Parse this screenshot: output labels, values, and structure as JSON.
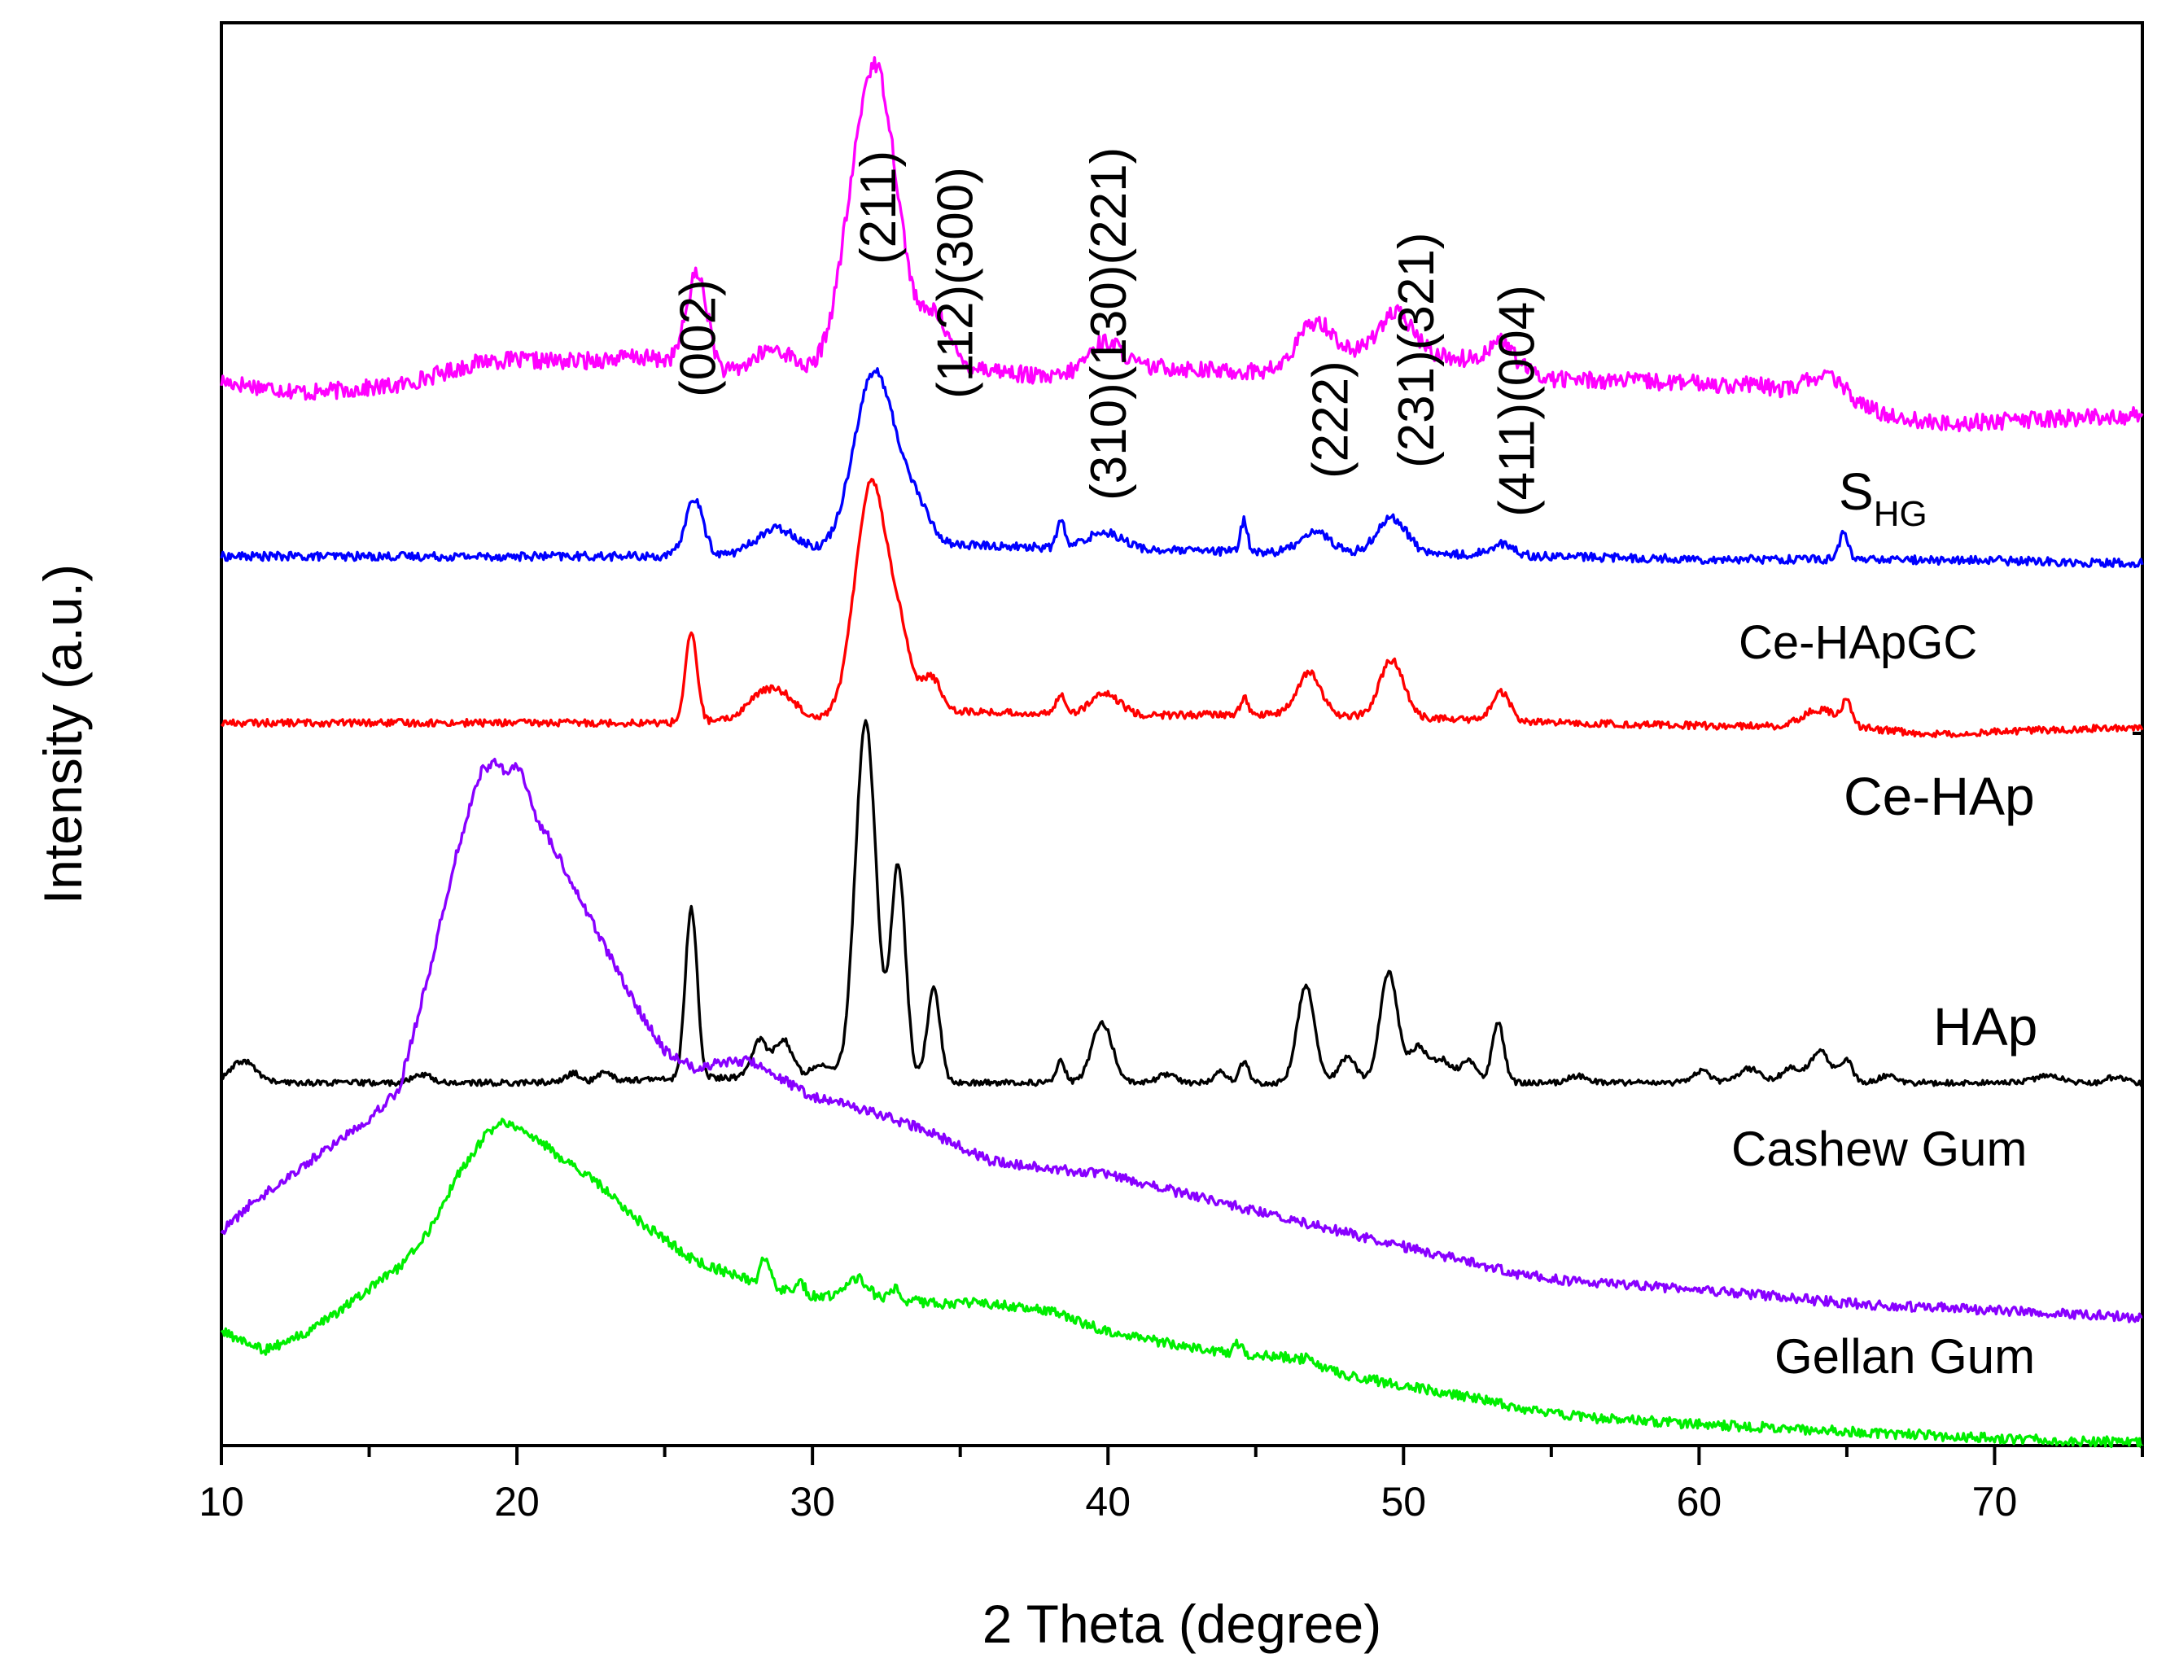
{
  "chart_data": {
    "type": "line",
    "title": "",
    "xlabel": "2 Theta (degree)",
    "ylabel": "Intensity (a.u.)",
    "xlim": [
      10,
      75
    ],
    "ylim": [
      0,
      100
    ],
    "xticks": [
      10,
      20,
      30,
      40,
      50,
      60,
      70
    ],
    "grid": false,
    "legend": "labels placed at right of each trace",
    "series": [
      {
        "name": "S",
        "subscript": "HG",
        "color": "#ff00ff",
        "offset": 74,
        "noise": 0.6,
        "baseline": [
          [
            10,
            0.8
          ],
          [
            11,
            0.5
          ],
          [
            13,
            0
          ],
          [
            16,
            0.5
          ],
          [
            19,
            2.3
          ],
          [
            22,
            2.2
          ],
          [
            24,
            2.5
          ],
          [
            25.5,
            2.2
          ],
          [
            27,
            1.3
          ],
          [
            30,
            1.2
          ],
          [
            31,
            3.5
          ],
          [
            35,
            2
          ],
          [
            38,
            1
          ],
          [
            42,
            1.8
          ],
          [
            44,
            1.5
          ],
          [
            46,
            1.5
          ],
          [
            48,
            2.5
          ],
          [
            50,
            2.8
          ],
          [
            53,
            2.2
          ],
          [
            55,
            1
          ],
          [
            58,
            0.8
          ],
          [
            62,
            0.5
          ],
          [
            65,
            -1
          ],
          [
            68,
            -2.2
          ],
          [
            70,
            -2
          ],
          [
            75,
            -1.6
          ]
        ],
        "peaks": [
          [
            26.1,
            6.5,
            0.35
          ],
          [
            28.7,
            1.8,
            0.7
          ],
          [
            32.1,
            20,
            0.75
          ],
          [
            34.2,
            3,
            0.4
          ],
          [
            39.9,
            2.2,
            0.6
          ],
          [
            47,
            3,
            0.6
          ],
          [
            49.7,
            2.8,
            0.6
          ],
          [
            53.3,
            1.6,
            0.4
          ],
          [
            64.3,
            1.8,
            0.7
          ]
        ]
      },
      {
        "name": "Ce-HApGC",
        "color": "#0000ff",
        "offset": 62.5,
        "noise": 0.3,
        "baseline": [
          [
            10,
            0
          ],
          [
            25,
            0
          ],
          [
            30,
            0.2
          ],
          [
            35,
            0.8
          ],
          [
            40,
            0.5
          ],
          [
            45,
            0.3
          ],
          [
            50,
            0.2
          ],
          [
            55,
            0
          ],
          [
            60,
            -0.2
          ],
          [
            65,
            -0.2
          ],
          [
            70,
            -0.3
          ],
          [
            75,
            -0.5
          ]
        ],
        "peaks": [
          [
            26,
            4,
            0.3
          ],
          [
            28.8,
            1.8,
            0.7
          ],
          [
            32.1,
            12.5,
            0.7
          ],
          [
            33.5,
            2.5,
            0.5
          ],
          [
            38.4,
            2,
            0.12
          ],
          [
            39.9,
            1.2,
            0.6
          ],
          [
            44.6,
            2.2,
            0.12
          ],
          [
            47,
            1.5,
            0.5
          ],
          [
            49.6,
            2.5,
            0.5
          ],
          [
            53.3,
            0.8,
            0.4
          ],
          [
            64.9,
            1.8,
            0.15
          ]
        ]
      },
      {
        "name": "Ce-HAp",
        "color": "#ff0000",
        "offset": 50.8,
        "noise": 0.25,
        "baseline": [
          [
            10,
            0
          ],
          [
            25,
            0
          ],
          [
            30,
            0.3
          ],
          [
            35,
            0.8
          ],
          [
            40,
            0.5
          ],
          [
            45,
            0.6
          ],
          [
            50,
            0.4
          ],
          [
            55,
            0
          ],
          [
            60,
            -0.2
          ],
          [
            65,
            -0.3
          ],
          [
            68,
            -0.8
          ],
          [
            70,
            -0.6
          ],
          [
            75,
            -0.3
          ]
        ],
        "peaks": [
          [
            25.9,
            6.2,
            0.2
          ],
          [
            28.2,
            1.5,
            0.5
          ],
          [
            29,
            1.5,
            0.5
          ],
          [
            32,
            16.5,
            0.55
          ],
          [
            33,
            4,
            0.35
          ],
          [
            34,
            2.5,
            0.35
          ],
          [
            38.4,
            1.5,
            0.15
          ],
          [
            39.9,
            1.5,
            0.5
          ],
          [
            44.6,
            1.2,
            0.12
          ],
          [
            46.8,
            3,
            0.4
          ],
          [
            49.6,
            4,
            0.4
          ],
          [
            53.3,
            2,
            0.3
          ],
          [
            64.1,
            1.2,
            0.6
          ],
          [
            65,
            1.5,
            0.15
          ]
        ]
      },
      {
        "name": "HAp",
        "color": "#000000",
        "offset": 25.5,
        "noise": 0.2,
        "baseline": [
          [
            10,
            0
          ],
          [
            11,
            0.3
          ],
          [
            12,
            0
          ],
          [
            20,
            0
          ],
          [
            30,
            0.5
          ],
          [
            35,
            0
          ],
          [
            75,
            0
          ]
        ],
        "peaks": [
          [
            10.7,
            1.3,
            0.4
          ],
          [
            16.8,
            0.6,
            0.3
          ],
          [
            21.9,
            0.6,
            0.2
          ],
          [
            23,
            0.7,
            0.2
          ],
          [
            25.9,
            12,
            0.2
          ],
          [
            28.2,
            2.6,
            0.25
          ],
          [
            29,
            2.6,
            0.3
          ],
          [
            30.3,
            0.9,
            0.3
          ],
          [
            31.8,
            25,
            0.35
          ],
          [
            32.9,
            15,
            0.25
          ],
          [
            34.1,
            6.5,
            0.22
          ],
          [
            38.4,
            1.5,
            0.15
          ],
          [
            39.8,
            4.2,
            0.35
          ],
          [
            42,
            0.6,
            0.3
          ],
          [
            43.8,
            0.8,
            0.2
          ],
          [
            44.6,
            1.5,
            0.15
          ],
          [
            46.7,
            6.8,
            0.3
          ],
          [
            48.1,
            1.8,
            0.3
          ],
          [
            49.5,
            7.8,
            0.3
          ],
          [
            50.5,
            2.5,
            0.3
          ],
          [
            51.3,
            1.6,
            0.3
          ],
          [
            52.2,
            1.5,
            0.3
          ],
          [
            53.2,
            4.2,
            0.2
          ],
          [
            55.9,
            0.5,
            0.3
          ],
          [
            60.1,
            0.8,
            0.3
          ],
          [
            61.7,
            1,
            0.4
          ],
          [
            63.1,
            1,
            0.3
          ],
          [
            64.1,
            2.2,
            0.35
          ],
          [
            65,
            1.5,
            0.2
          ],
          [
            66.4,
            0.5,
            0.3
          ],
          [
            71.8,
            0.6,
            0.4
          ],
          [
            74.1,
            0.4,
            0.3
          ]
        ]
      },
      {
        "name": "Cashew Gum",
        "color": "#8800ff",
        "offset": 15,
        "noise": 0.35,
        "baseline": [
          [
            10,
            0
          ],
          [
            11,
            2
          ],
          [
            13,
            5
          ],
          [
            15,
            8
          ],
          [
            16,
            10
          ],
          [
            17,
            18
          ],
          [
            18,
            27
          ],
          [
            18.8,
            32.5
          ],
          [
            19.3,
            33
          ],
          [
            20,
            31
          ],
          [
            21,
            28
          ],
          [
            22,
            24
          ],
          [
            23,
            20
          ],
          [
            24,
            16
          ],
          [
            25,
            12.8
          ],
          [
            26,
            11.5
          ],
          [
            27,
            12
          ],
          [
            28,
            12
          ],
          [
            30,
            9.5
          ],
          [
            32,
            8.5
          ],
          [
            34,
            7
          ],
          [
            36,
            5
          ],
          [
            38,
            4.5
          ],
          [
            40,
            4
          ],
          [
            42,
            3
          ],
          [
            44,
            2
          ],
          [
            46,
            1
          ],
          [
            48,
            0
          ],
          [
            50,
            -1
          ],
          [
            52,
            -2
          ],
          [
            54,
            -3
          ],
          [
            56,
            -3.5
          ],
          [
            60,
            -4
          ],
          [
            65,
            -5
          ],
          [
            70,
            -5.5
          ],
          [
            75,
            -6
          ]
        ],
        "peaks": [
          [
            20.1,
            1.8,
            0.25
          ]
        ]
      },
      {
        "name": "Gellan Gum",
        "color": "#00ee00",
        "offset": 8,
        "noise": 0.35,
        "baseline": [
          [
            10,
            0
          ],
          [
            11.5,
            -1.3
          ],
          [
            13,
            0
          ],
          [
            15,
            3
          ],
          [
            16,
            4.5
          ],
          [
            17,
            7
          ],
          [
            18,
            11
          ],
          [
            19,
            14
          ],
          [
            19.6,
            14.8
          ],
          [
            20.3,
            14
          ],
          [
            21,
            13
          ],
          [
            22,
            11.5
          ],
          [
            23,
            10
          ],
          [
            24,
            8
          ],
          [
            26,
            5
          ],
          [
            28,
            3.5
          ],
          [
            30,
            2.5
          ],
          [
            32,
            2.5
          ],
          [
            34,
            2
          ],
          [
            36,
            2
          ],
          [
            38,
            1.5
          ],
          [
            40,
            0
          ],
          [
            42,
            -0.8
          ],
          [
            44,
            -1.5
          ],
          [
            46,
            -1.8
          ],
          [
            48,
            -3
          ],
          [
            50,
            -3.8
          ],
          [
            52,
            -4.5
          ],
          [
            54,
            -5.4
          ],
          [
            56,
            -6
          ],
          [
            60,
            -6.5
          ],
          [
            65,
            -7
          ],
          [
            70,
            -7.5
          ],
          [
            75,
            -7.8
          ]
        ],
        "peaks": [
          [
            28.4,
            2,
            0.15
          ],
          [
            29.6,
            0.7,
            0.15
          ],
          [
            31.5,
            1.3,
            0.3
          ],
          [
            32.8,
            0.7,
            0.12
          ],
          [
            44.4,
            0.7,
            0.12
          ],
          [
            46.8,
            0.5,
            0.2
          ]
        ]
      }
    ],
    "annotations": [
      {
        "text": "(002)",
        "x": 26.1
      },
      {
        "text": "(211)",
        "x": 32.2
      },
      {
        "text": "(112)(300)",
        "x": 34.8
      },
      {
        "text": "(310)(130)(221)",
        "x": 40.0
      },
      {
        "text": "(222)",
        "x": 47.5
      },
      {
        "text": "(231)(321)",
        "x": 50.4
      },
      {
        "text": "(411)(004)",
        "x": 53.8
      }
    ]
  }
}
